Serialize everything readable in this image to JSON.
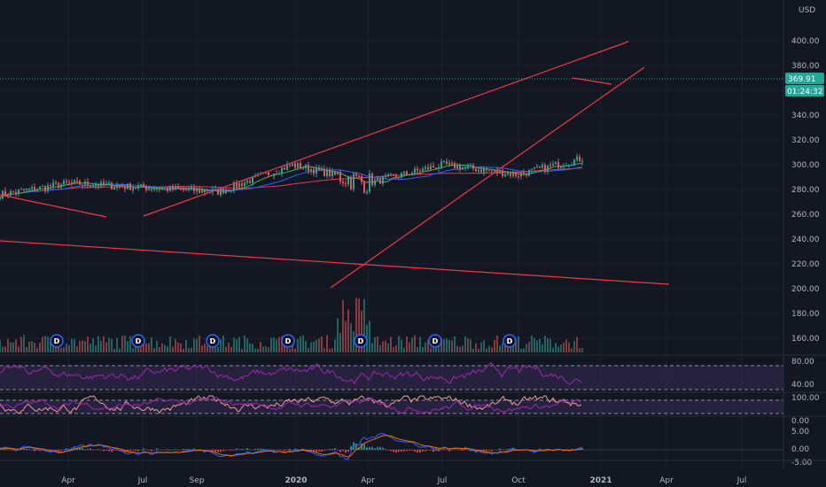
{
  "chart_data": [
    {
      "type": "candlestick",
      "pane": "price",
      "currency_label": "USD",
      "y_ticks": [
        "160.00",
        "180.00",
        "200.00",
        "220.00",
        "240.00",
        "260.00",
        "280.00",
        "300.00",
        "320.00",
        "340.00",
        "360.00",
        "380.00",
        "400.00"
      ],
      "ylim": [
        150,
        420
      ],
      "last_price": "369.91",
      "countdown": "01:24:32",
      "x_ticks": [
        "Apr",
        "Jul",
        "Sep",
        "2020",
        "Apr",
        "Jul",
        "Oct",
        "2021",
        "Apr",
        "Jul"
      ],
      "anchors": [
        {
          "date": "2019-01",
          "value": 255
        },
        {
          "date": "2019-04",
          "value": 285
        },
        {
          "date": "2019-06",
          "value": 278
        },
        {
          "date": "2019-07",
          "value": 300
        },
        {
          "date": "2019-08",
          "value": 285
        },
        {
          "date": "2019-09",
          "value": 300
        },
        {
          "date": "2019-10",
          "value": 292
        },
        {
          "date": "2019-12",
          "value": 322
        },
        {
          "date": "2020-02",
          "value": 338
        },
        {
          "date": "2020-03",
          "value": 225
        },
        {
          "date": "2020-04",
          "value": 275
        },
        {
          "date": "2020-06",
          "value": 310
        },
        {
          "date": "2020-08",
          "value": 345
        },
        {
          "date": "2020-09",
          "value": 330
        },
        {
          "date": "2020-10",
          "value": 330
        },
        {
          "date": "2020-11",
          "value": 362
        },
        {
          "date": "2020-12",
          "value": 370
        }
      ],
      "dividend_markers": [
        "D",
        "D",
        "D",
        "D",
        "D",
        "D",
        "D"
      ],
      "colors": {
        "up": "#26a69a",
        "down": "#ef5350",
        "trendline": "#f23645",
        "ma_red": "#e8374a",
        "ma_blue": "#2962ff",
        "ma_green": "#4caf50",
        "price_tag": "#26a69a",
        "dividend": "#2962ff"
      }
    },
    {
      "type": "line",
      "pane": "rsi",
      "y_ticks": [
        "40.00",
        "80.00"
      ],
      "band": [
        30,
        70
      ],
      "color": "#9c27b0"
    },
    {
      "type": "line",
      "pane": "stochastic",
      "y_ticks": [
        "100.00",
        "0.00"
      ],
      "color_k": "#ef9a9a",
      "color_d": "#9c27b0"
    },
    {
      "type": "bar",
      "pane": "macd",
      "y_ticks": [
        "5.00",
        "0.00",
        "-5.00"
      ],
      "color_macd": "#2962ff",
      "color_signal": "#ef6c00"
    }
  ]
}
